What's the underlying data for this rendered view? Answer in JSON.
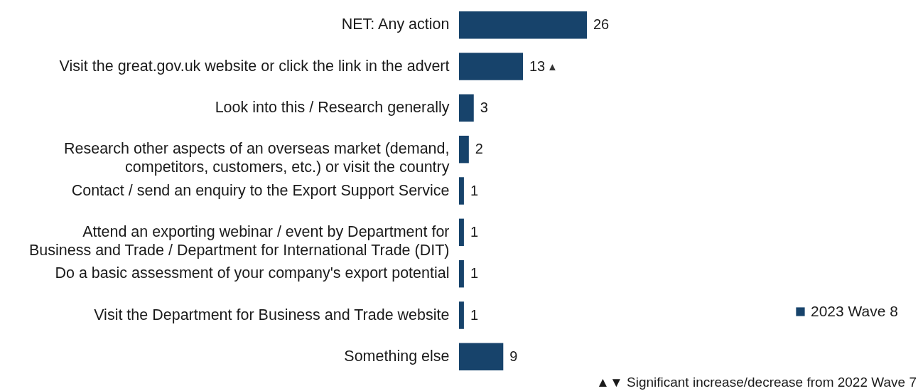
{
  "chart_data": {
    "type": "bar",
    "orientation": "horizontal",
    "categories": [
      "NET: Any action",
      "Visit the great.gov.uk website or click the link in the advert",
      "Look into this / Research generally",
      "Research other aspects of an overseas market (demand, competitors, customers, etc.) or visit the country",
      "Contact / send an enquiry to the Export Support Service",
      "Attend an exporting webinar / event by Department for Business and Trade / Department for International Trade (DIT)",
      "Do a basic assessment of your company's export potential",
      "Visit the Department for Business and Trade website",
      "Something else"
    ],
    "series": [
      {
        "name": "2023 Wave 8",
        "color": "#17436b",
        "values": [
          26,
          13,
          3,
          2,
          1,
          1,
          1,
          1,
          9
        ]
      }
    ],
    "data_labels": true,
    "legend": "right",
    "grid": false,
    "annotations": [
      {
        "text": "▲",
        "x": 13,
        "y": "Visit the great.gov.uk website or click the link in the advert"
      },
      "▲▼ Significant increase/decrease from 2022 Wave 7"
    ]
  }
}
